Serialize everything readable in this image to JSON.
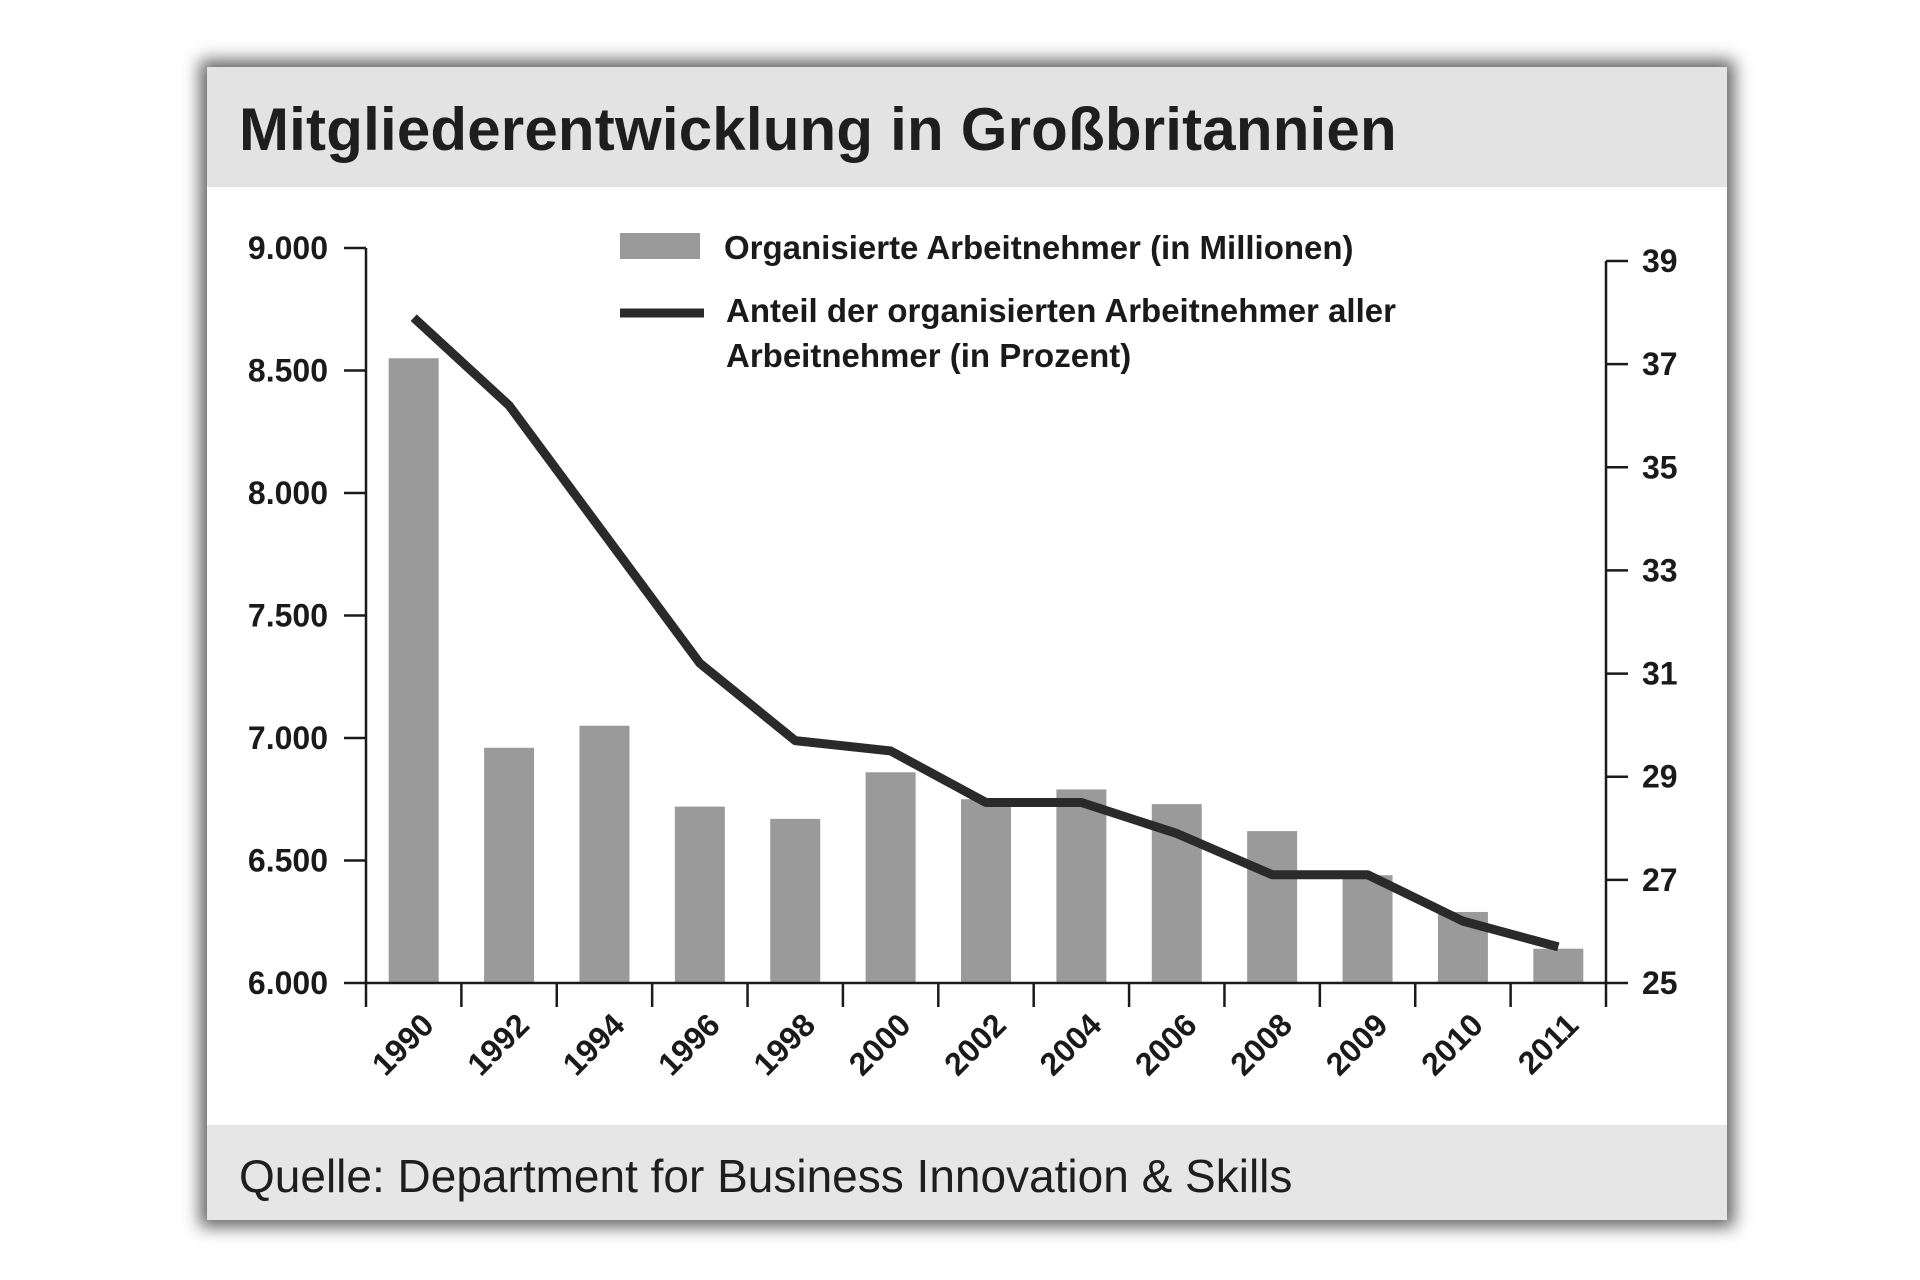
{
  "header": {
    "title": "Mitgliederentwicklung in Großbritannien"
  },
  "footer": {
    "source": "Quelle: Department for Business Innovation & Skills"
  },
  "chart_data": {
    "type": "bar+line",
    "title": "Mitgliederentwicklung in Großbritannien",
    "categories": [
      "1990",
      "1992",
      "1994",
      "1996",
      "1998",
      "2000",
      "2002",
      "2004",
      "2006",
      "2008",
      "2009",
      "2010",
      "2011"
    ],
    "series": [
      {
        "name": "Organisierte Arbeitnehmer (in Millionen)",
        "type": "bar",
        "axis": "left",
        "color": "#9a9a9a",
        "values": [
          8550,
          6960,
          7050,
          6720,
          6670,
          6860,
          6750,
          6790,
          6730,
          6620,
          6440,
          6290,
          6140
        ]
      },
      {
        "name_lines": [
          "Anteil der organisierten Arbeitnehmer aller",
          "Arbeitnehmer (in Prozent)"
        ],
        "type": "line",
        "axis": "right",
        "color": "#2a2a2a",
        "values": [
          37.9,
          36.2,
          33.7,
          31.2,
          29.7,
          29.5,
          28.5,
          28.5,
          27.9,
          27.1,
          27.1,
          26.2,
          25.7
        ]
      }
    ],
    "left_axis": {
      "ylim": [
        6000,
        9000
      ],
      "ticks": [
        9000,
        8500,
        8000,
        7500,
        7000,
        6500,
        6000
      ],
      "tick_labels": [
        "9.000",
        "8.500",
        "8.000",
        "7.500",
        "7.000",
        "6.500",
        "6.000"
      ]
    },
    "right_axis": {
      "ylim": [
        25,
        39
      ],
      "ticks": [
        39,
        37,
        35,
        33,
        31,
        29,
        27,
        25
      ],
      "tick_labels": [
        "39",
        "37",
        "35",
        "33",
        "31",
        "29",
        "27",
        "25"
      ]
    },
    "grid": false,
    "legend": "top-center"
  }
}
